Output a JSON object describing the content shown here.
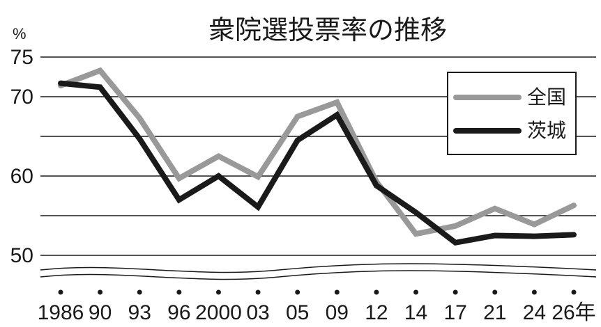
{
  "chart_data": {
    "type": "line",
    "title": "衆院選投票率の推移",
    "unit": "%",
    "x_labels": [
      "1986",
      "90",
      "93",
      "96",
      "2000",
      "03",
      "05",
      "09",
      "12",
      "14",
      "17",
      "21",
      "24",
      "26年"
    ],
    "x": [
      1986,
      1990,
      1993,
      1996,
      2000,
      2003,
      2005,
      2009,
      2012,
      2014,
      2017,
      2021,
      2024,
      2026
    ],
    "y_ticks": [
      50,
      60,
      70,
      75
    ],
    "ylim": [
      47,
      75
    ],
    "axis_break": true,
    "grid": true,
    "legend_position": "top-right",
    "series": [
      {
        "name": "全国",
        "color": "#999999",
        "values": [
          71.4,
          73.3,
          67.3,
          59.7,
          62.5,
          59.9,
          67.5,
          69.3,
          59.3,
          52.7,
          53.7,
          55.9,
          53.9,
          56.3
        ]
      },
      {
        "name": "茨城",
        "color": "#1a1a1a",
        "values": [
          71.7,
          71.2,
          64.7,
          57.0,
          60.0,
          56.1,
          64.5,
          67.7,
          58.8,
          55.4,
          51.6,
          52.5,
          52.4,
          52.6
        ]
      }
    ]
  }
}
